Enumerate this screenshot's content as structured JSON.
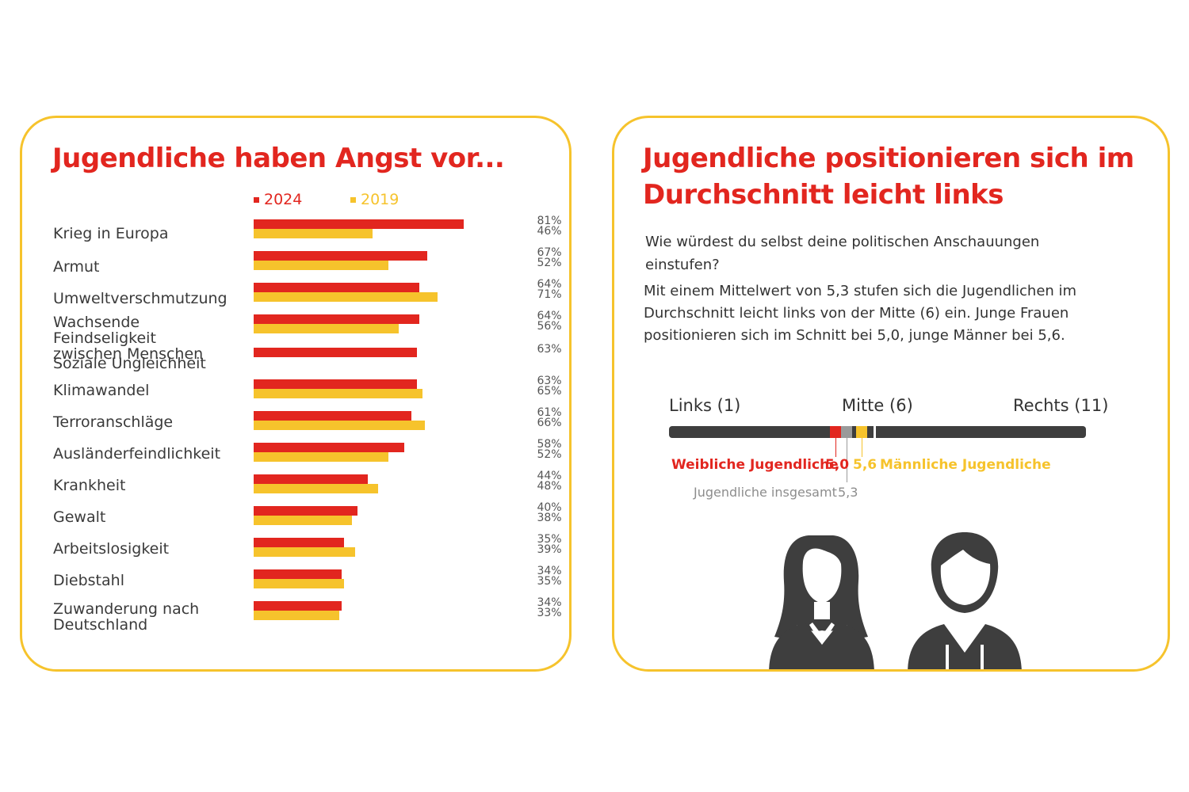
{
  "left_panel": {
    "title": "Jugendliche haben Angst vor...",
    "legend": {
      "series_2024": "2024",
      "series_2019": "2019"
    }
  },
  "chart_data": {
    "type": "bar",
    "orientation": "horizontal",
    "title": "Jugendliche haben Angst vor...",
    "categories": [
      "Krieg in Europa",
      "Armut",
      "Umweltverschmutzung",
      "Wachsende Feindseligkeit\nzwischen Menschen",
      "Soziale Ungleichheit",
      "Klimawandel",
      "Terroranschläge",
      "Ausländerfeindlichkeit",
      "Krankheit",
      "Gewalt",
      "Arbeitslosigkeit",
      "Diebstahl",
      "Zuwanderung nach\nDeutschland"
    ],
    "series": [
      {
        "name": "2024",
        "color": "#e2261f",
        "values": [
          81,
          67,
          64,
          64,
          63,
          63,
          61,
          58,
          44,
          40,
          35,
          34,
          34
        ]
      },
      {
        "name": "2019",
        "color": "#f6c32c",
        "values": [
          46,
          52,
          71,
          56,
          null,
          65,
          66,
          52,
          48,
          38,
          39,
          35,
          33
        ]
      }
    ],
    "value_labels": [
      [
        "81%",
        "46%"
      ],
      [
        "67%",
        "52%"
      ],
      [
        "64%",
        "71%"
      ],
      [
        "64%",
        "56%"
      ],
      [
        "63%",
        ""
      ],
      [
        "63%",
        "65%"
      ],
      [
        "61%",
        "66%"
      ],
      [
        "58%",
        "52%"
      ],
      [
        "44%",
        "48%"
      ],
      [
        "40%",
        "38%"
      ],
      [
        "35%",
        "39%"
      ],
      [
        "34%",
        "35%"
      ],
      [
        "34%",
        "33%"
      ]
    ],
    "xlim": [
      0,
      100
    ],
    "legend_position": "top",
    "grid": false
  },
  "right_panel": {
    "title": "Jugendliche positionieren sich im Durchschnitt leicht links",
    "question": "Wie würdest du selbst deine politischen Anschauungen einstufen?",
    "body": "Mit einem Mittelwert von 5,3 stufen sich die Jugendlichen im Durchschnitt leicht links von der Mitte (6) ein. Junge Frauen positionieren sich im Schnitt bei 5,0, junge Männer bei 5,6.",
    "scale": {
      "left_label": "Links (1)",
      "mid_label": "Mitte (6)",
      "right_label": "Rechts (11)",
      "min": 1,
      "max": 11,
      "center": 6
    },
    "markers": {
      "female": {
        "label": "Weibliche  Jugendliche",
        "value": 5.0,
        "value_text": "5,0",
        "color": "#e2261f"
      },
      "male": {
        "label": "Männliche Jugendliche",
        "value": 5.6,
        "value_text": "5,6",
        "color": "#f6c32c"
      },
      "total": {
        "label": "Jugendliche insgesamt",
        "value": 5.3,
        "value_text": "5,3",
        "color": "#9a9a9a"
      }
    },
    "illustration": {
      "icons": [
        "woman-silhouette-icon",
        "man-silhouette-icon"
      ],
      "color": "#3e3e3e"
    }
  }
}
